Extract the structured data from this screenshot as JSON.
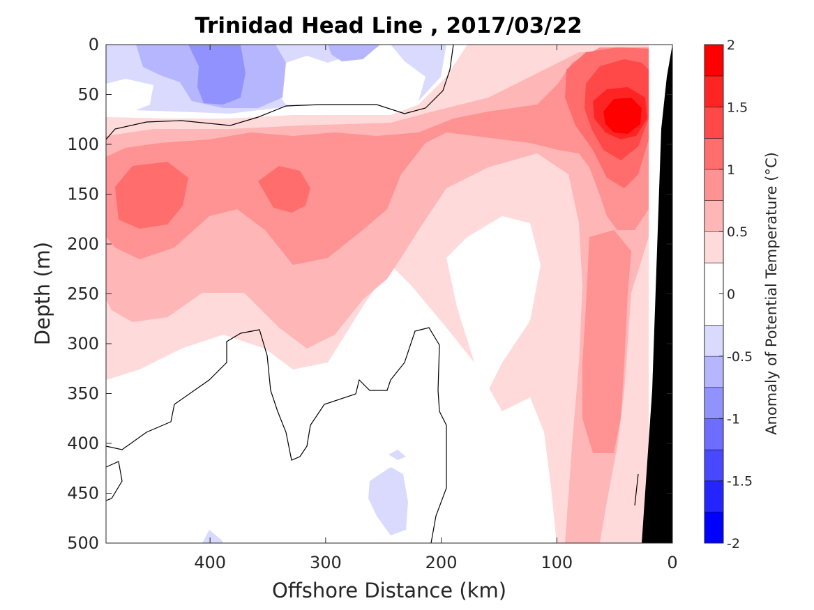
{
  "chart_data": {
    "type": "heatmap",
    "subtype": "filled-contour",
    "title": "Trinidad Head Line , 2017/03/22",
    "xlabel": "Offshore Distance (km)",
    "ylabel": "Depth (m)",
    "xlim": [
      490,
      0
    ],
    "x_reversed": true,
    "ylim": [
      500,
      0
    ],
    "y_reversed": true,
    "xticks": [
      400,
      300,
      200,
      100,
      0
    ],
    "yticks": [
      0,
      50,
      100,
      150,
      200,
      250,
      300,
      350,
      400,
      450,
      500
    ],
    "colorbar": {
      "label": "Anomaly of Potential Temperature (°C)",
      "range": [
        -2,
        2
      ],
      "levels": [
        -2,
        -1.75,
        -1.5,
        -1.25,
        -1,
        -0.75,
        -0.5,
        -0.25,
        0.25,
        0.5,
        0.75,
        1,
        1.25,
        1.5,
        1.75,
        2
      ],
      "tick_values": [
        2,
        1.5,
        1,
        0.5,
        0,
        -0.5,
        -1,
        -1.5,
        -2
      ],
      "tick_labels": [
        "2",
        "1.5",
        "1",
        "0.5",
        "0",
        "-0.5",
        "-1",
        "-1.5",
        "-2"
      ],
      "colors": [
        "#0000ff",
        "#2424ff",
        "#4848ff",
        "#6d6dff",
        "#9292ff",
        "#b6b6ff",
        "#dadaff",
        "#ffffff",
        "#ffdada",
        "#ffb6b6",
        "#ff9292",
        "#ff6d6d",
        "#ff4848",
        "#ff2424",
        "#ff0000"
      ]
    },
    "features": [
      {
        "name": "cool-surface-anomaly",
        "x_range_km": [
          200,
          490
        ],
        "depth_range_m": [
          0,
          75
        ],
        "peak": -1.0
      },
      {
        "name": "warm-core-offshore",
        "x_km": 455,
        "depth_m": 150,
        "peak": 1.0
      },
      {
        "name": "warm-core-mid",
        "x_km": 330,
        "depth_m": 150,
        "peak": 1.0
      },
      {
        "name": "warm-nearshore-surface",
        "x_km": 40,
        "depth_m": 70,
        "peak": 1.9
      },
      {
        "name": "warm-slope-tongue",
        "x_range_km": [
          20,
          90
        ],
        "depth_range_m": [
          100,
          500
        ],
        "peak": 0.75
      }
    ]
  }
}
